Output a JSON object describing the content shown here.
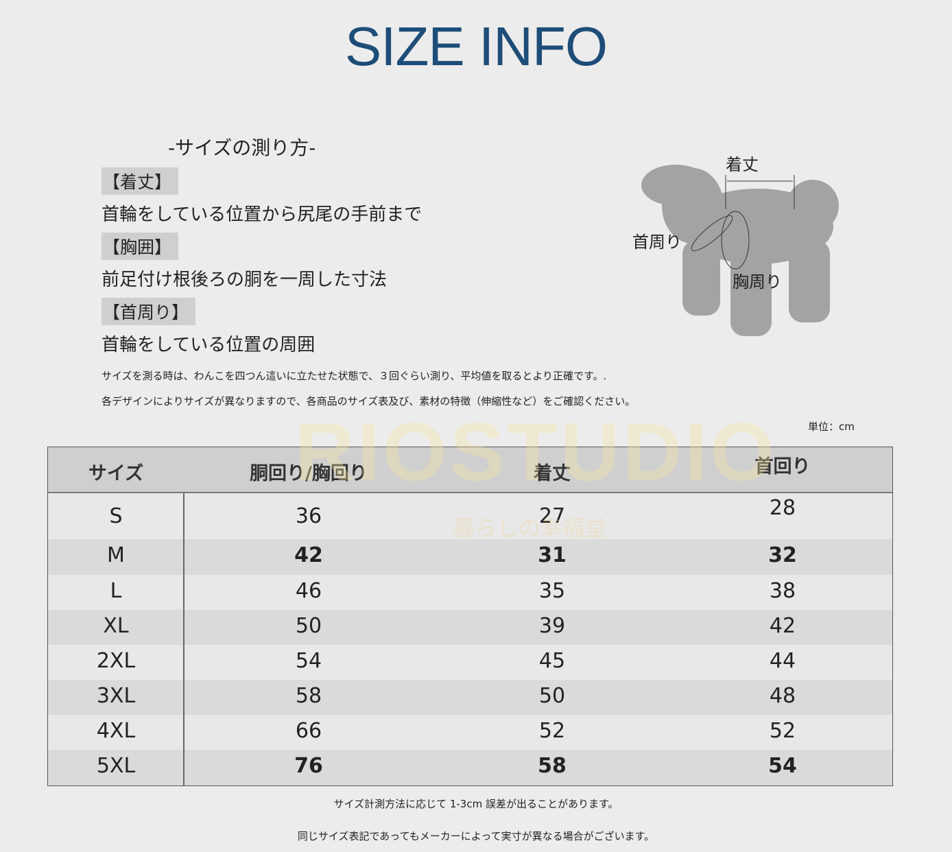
{
  "title": "SIZE INFO",
  "howto": {
    "heading": "-サイズの測り方-",
    "items": [
      {
        "label": "【着丈】",
        "desc": "首輪をしている位置から尻尾の手前まで"
      },
      {
        "label": "【胸囲】",
        "desc": "前足付け根後ろの胴を一周した寸法"
      },
      {
        "label": "【首周り】",
        "desc": "首輪をしている位置の周囲"
      }
    ],
    "notes": [
      "サイズを測る時は、わんこを四つん這いに立たせた状態で、３回ぐらい測り、平均値を取るとより正確です。.",
      "各デザインによりサイズが異なりますので、各商品のサイズ表及び、素材の特徴（伸縮性など）をご確認ください。"
    ]
  },
  "diagram": {
    "length": "着丈",
    "neck": "首周り",
    "chest": "胸周り"
  },
  "watermark": {
    "brand": "RIOSTUDIO",
    "sub": "暮らしの幸福堂"
  },
  "unit": "単位：cm",
  "table": {
    "headers": [
      "サイズ",
      "胴回り/胸回り",
      "着丈",
      "首回り"
    ],
    "rows": [
      [
        "S",
        "36",
        "27",
        "28"
      ],
      [
        "M",
        "42",
        "31",
        "32"
      ],
      [
        "L",
        "46",
        "35",
        "38"
      ],
      [
        "XL",
        "50",
        "39",
        "42"
      ],
      [
        "2XL",
        "54",
        "45",
        "44"
      ],
      [
        "3XL",
        "58",
        "50",
        "48"
      ],
      [
        "4XL",
        "66",
        "52",
        "52"
      ],
      [
        "5XL",
        "76",
        "58",
        "54"
      ]
    ]
  },
  "footer": [
    "サイズ計測方法に応じて 1-3cm 誤差が出ることがあります。",
    "同じサイズ表記であってもメーカーによって実寸が異なる場合がございます。"
  ],
  "colors": {
    "title": "#1d4d78",
    "header_bg": "#cfcfcf",
    "row_dark": "#dadada",
    "row_light": "#e8e8e8"
  }
}
